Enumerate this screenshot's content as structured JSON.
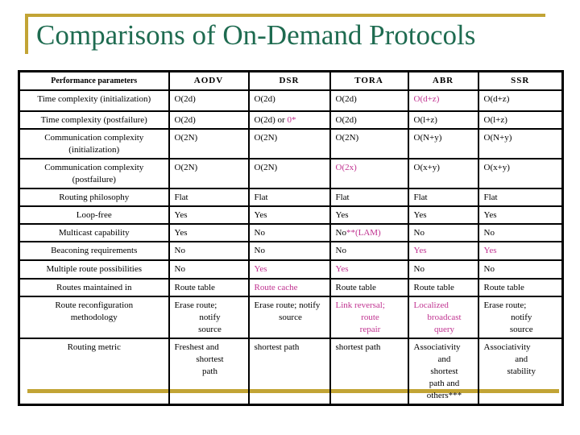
{
  "slide": {
    "title": "Comparisons of On-Demand Protocols"
  },
  "colors": {
    "title_green": "#1e6b50",
    "accent_gold": "#c2a435",
    "highlight_magenta": "#c03390",
    "border_black": "#000000"
  },
  "table": {
    "header": [
      "Performance parameters",
      "AODV",
      "DSR",
      "TORA",
      "ABR",
      "SSR"
    ],
    "rows": [
      {
        "param": "Time complexity (initialization)",
        "cells": [
          {
            "text": "O(2d)"
          },
          {
            "text": "O(2d)"
          },
          {
            "text": "O(2d)"
          },
          {
            "text": "O(d+z)",
            "highlight": true
          },
          {
            "text": "O(d+z)"
          }
        ]
      },
      {
        "param": "Time complexity (postfailure)",
        "cells": [
          {
            "text": "O(2d)"
          },
          {
            "text": "O(2d) or 0*",
            "highlight_part": "0*"
          },
          {
            "text": "O(2d)"
          },
          {
            "text": "O(l+z)"
          },
          {
            "text": "O(l+z)"
          }
        ]
      },
      {
        "param": "Communication complexity\n(initialization)",
        "cells": [
          {
            "text": "O(2N)"
          },
          {
            "text": "O(2N)"
          },
          {
            "text": "O(2N)"
          },
          {
            "text": "O(N+y)"
          },
          {
            "text": "O(N+y)"
          }
        ]
      },
      {
        "param": "Communication complexity\n(postfailure)",
        "cells": [
          {
            "text": "O(2N)"
          },
          {
            "text": "O(2N)"
          },
          {
            "text": "O(2x)",
            "highlight": true
          },
          {
            "text": "O(x+y)"
          },
          {
            "text": "O(x+y)"
          }
        ]
      },
      {
        "param": "Routing philosophy",
        "cells": [
          {
            "text": "Flat"
          },
          {
            "text": "Flat"
          },
          {
            "text": "Flat"
          },
          {
            "text": "Flat"
          },
          {
            "text": "Flat"
          }
        ]
      },
      {
        "param": "Loop-free",
        "cells": [
          {
            "text": "Yes"
          },
          {
            "text": "Yes"
          },
          {
            "text": "Yes"
          },
          {
            "text": "Yes"
          },
          {
            "text": "Yes"
          }
        ]
      },
      {
        "param": "Multicast capability",
        "cells": [
          {
            "text": "Yes"
          },
          {
            "text": "No"
          },
          {
            "text": "No**(LAM)",
            "highlight_part": "**(LAM)"
          },
          {
            "text": "No"
          },
          {
            "text": "No"
          }
        ]
      },
      {
        "param": "Beaconing requirements",
        "cells": [
          {
            "text": "No"
          },
          {
            "text": "No"
          },
          {
            "text": "No"
          },
          {
            "text": "Yes",
            "highlight": true
          },
          {
            "text": "Yes",
            "highlight": true
          }
        ]
      },
      {
        "param": "Multiple route possibilities",
        "cells": [
          {
            "text": "No"
          },
          {
            "text": "Yes",
            "highlight": true
          },
          {
            "text": "Yes",
            "highlight": true
          },
          {
            "text": "No"
          },
          {
            "text": "No"
          }
        ]
      },
      {
        "param": "Routes maintained in",
        "cells": [
          {
            "text": "Route table"
          },
          {
            "text": "Route cache",
            "highlight": true
          },
          {
            "text": "Route table"
          },
          {
            "text": "Route table"
          },
          {
            "text": "Route table"
          }
        ]
      },
      {
        "param": "Route reconfiguration\nmethodology",
        "cells": [
          {
            "text": "Erase route;\nnotify\nsource"
          },
          {
            "text": "Erase route; notify\nsource"
          },
          {
            "text": "Link reversal;\nroute\nrepair",
            "highlight": true
          },
          {
            "text": "Localized\nbroadcast\nquery",
            "highlight": true
          },
          {
            "text": "Erase route;\nnotify\nsource"
          }
        ]
      },
      {
        "param": "Routing metric",
        "cells": [
          {
            "text": "Freshest and\nshortest\npath"
          },
          {
            "text": "shortest path"
          },
          {
            "text": "shortest path"
          },
          {
            "text": "Associativity\nand\nshortest\npath and\nothers***"
          },
          {
            "text": "Associativity\nand\nstability"
          }
        ]
      }
    ]
  }
}
